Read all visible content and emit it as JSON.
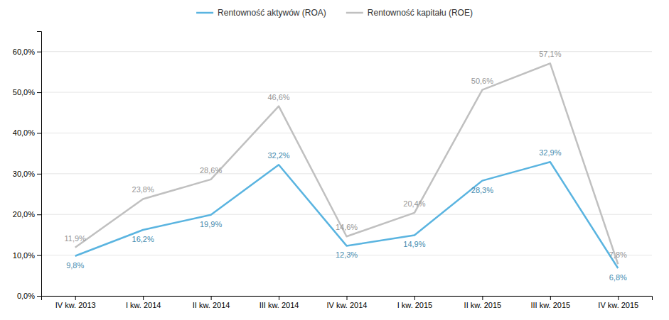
{
  "chart_data": {
    "type": "line",
    "categories": [
      "IV kw. 2013",
      "I kw. 2014",
      "II kw. 2014",
      "III kw. 2014",
      "IV kw. 2014",
      "I kw. 2015",
      "II kw. 2015",
      "III kw. 2015",
      "IV kw. 2015"
    ],
    "series": [
      {
        "name": "Rentowność aktywów (ROA)",
        "color": "#5ab4e0",
        "values": [
          9.8,
          16.2,
          19.9,
          32.2,
          12.3,
          14.9,
          28.3,
          32.9,
          6.8
        ],
        "value_labels": [
          "9,8%",
          "16,2%",
          "19,9%",
          "32,2%",
          "12,3%",
          "14,9%",
          "28,3%",
          "32,9%",
          "6,8%"
        ]
      },
      {
        "name": "Rentowność kapitału (ROE)",
        "color": "#c0c0c0",
        "values": [
          11.9,
          23.8,
          28.6,
          46.6,
          14.6,
          20.4,
          50.6,
          57.1,
          7.8
        ],
        "value_labels": [
          "11,9%",
          "23,8%",
          "28,6%",
          "46,6%",
          "14,6%",
          "20,4%",
          "50,6%",
          "57,1%",
          "7,8%"
        ]
      }
    ],
    "ylim": [
      0,
      65
    ],
    "yticks": [
      {
        "value": 0,
        "label": "0,0%"
      },
      {
        "value": 10,
        "label": "10,0%"
      },
      {
        "value": 20,
        "label": "20,0%"
      },
      {
        "value": 30,
        "label": "30,0%"
      },
      {
        "value": 40,
        "label": "40,0%"
      },
      {
        "value": 50,
        "label": "50,0%"
      },
      {
        "value": 60,
        "label": "60,0%"
      }
    ],
    "grid": true,
    "legend": "top",
    "data_labels": true
  }
}
